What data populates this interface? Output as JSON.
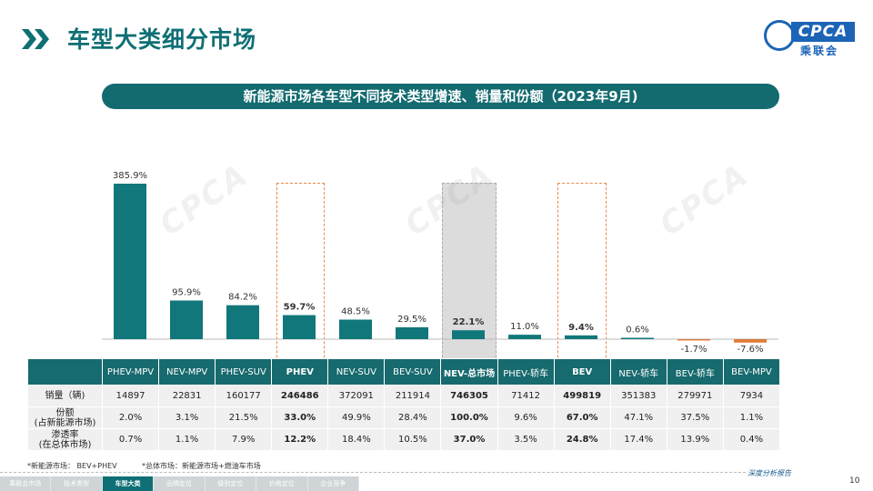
{
  "header": {
    "title": "车型大类细分市场",
    "logo_text": "CPCA",
    "logo_cn": "乘联会"
  },
  "banner": "新能源市场各车型不同技术类型增速、销量和份额（2023年9月)",
  "watermark_text": "CPCA",
  "chart_data": {
    "type": "bar",
    "title": "新能源市场各车型不同技术类型增速、销量和份额（2023年9月)",
    "categories": [
      "PHEV-MPV",
      "NEV-MPV",
      "PHEV-SUV",
      "PHEV",
      "NEV-SUV",
      "BEV-SUV",
      "NEV-总市场",
      "PHEV-轿车",
      "BEV",
      "NEV-轿车",
      "BEV-轿车",
      "BEV-MPV"
    ],
    "values": [
      385.9,
      95.9,
      84.2,
      59.7,
      48.5,
      29.5,
      22.1,
      11.0,
      9.4,
      0.6,
      -1.7,
      -7.6
    ],
    "labels": [
      "385.9%",
      "95.9%",
      "84.2%",
      "59.7%",
      "48.5%",
      "29.5%",
      "22.1%",
      "11.0%",
      "9.4%",
      "0.6%",
      "-1.7%",
      "-7.6%"
    ],
    "bold": [
      false,
      false,
      false,
      true,
      false,
      false,
      true,
      false,
      true,
      false,
      false,
      false
    ],
    "unit": "%",
    "ylim": [
      -10,
      400
    ],
    "colors": {
      "positive": "#11777a",
      "negative": "#e07b39"
    },
    "highlight_dashed": [
      "PHEV",
      "BEV"
    ],
    "highlight_grey": [
      "NEV-总市场"
    ],
    "legend": "none",
    "grid": false
  },
  "table": {
    "rows": [
      {
        "label": "销量（辆)",
        "cells": [
          "14897",
          "22831",
          "160177",
          "246486",
          "372091",
          "211914",
          "746305",
          "71412",
          "499819",
          "351383",
          "279971",
          "7934"
        ]
      },
      {
        "label": "份额\n(占新能源市场)",
        "cells": [
          "2.0%",
          "3.1%",
          "21.5%",
          "33.0%",
          "49.9%",
          "28.4%",
          "100.0%",
          "9.6%",
          "67.0%",
          "47.1%",
          "37.5%",
          "1.1%"
        ]
      },
      {
        "label": "渗透率\n(在总体市场)",
        "cells": [
          "0.7%",
          "1.1%",
          "7.9%",
          "12.2%",
          "18.4%",
          "10.5%",
          "37.0%",
          "3.5%",
          "24.8%",
          "17.4%",
          "13.9%",
          "0.4%"
        ]
      }
    ]
  },
  "notes": {
    "n1": "*新能源市场： BEV+PHEV",
    "n2": "*总体市场：新能源市场+燃油车市场"
  },
  "footer": {
    "tagline": "深度分析报告",
    "nav": [
      "乘联会市场",
      "技术类型",
      "车型大类",
      "品牌定位",
      "级别定位",
      "价格定位",
      "企业竞争"
    ],
    "active_index": 2,
    "page": "10"
  }
}
